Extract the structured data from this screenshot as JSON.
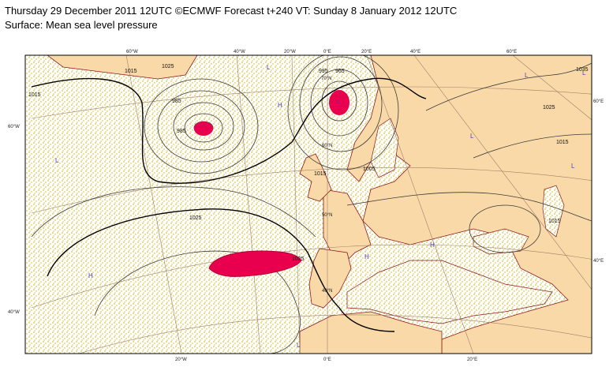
{
  "header": {
    "line1": "Thursday 29 December 2011 12UTC ©ECMWF Forecast t+240 VT: Sunday 8 January 2012 12UTC",
    "line2": "Surface: Mean sea level pressure"
  },
  "graticule_labels": [
    "60°W",
    "40°W",
    "20°W",
    "0°E",
    "20°E",
    "40°E",
    "60°E",
    "60°W",
    "40°W",
    "60°E",
    "40°E",
    "20°W",
    "0°E",
    "20°E",
    "70°N",
    "60°N",
    "50°N",
    "40°N"
  ],
  "isobar_labels": [
    "1015",
    "1015",
    "1025",
    "985",
    "985",
    "995",
    "965",
    "1005",
    "1015",
    "1025",
    "1025",
    "1015",
    "1035",
    "1025",
    "1015"
  ],
  "pressure_centers": [
    "L",
    "H",
    "L",
    "L",
    "L",
    "H",
    "H",
    "H",
    "L",
    "L",
    "L",
    "L"
  ]
}
